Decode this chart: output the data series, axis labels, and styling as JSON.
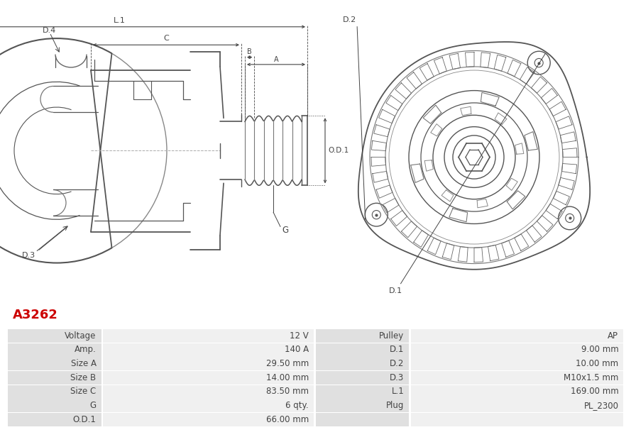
{
  "title": "A3262",
  "title_color": "#cc0000",
  "bg_color": "#ffffff",
  "table_row_bg_odd": "#e0e0e0",
  "table_row_bg_even": "#f0f0f0",
  "table_border_color": "#ffffff",
  "left_col_labels": [
    "Voltage",
    "Amp.",
    "Size A",
    "Size B",
    "Size C",
    "G",
    "O.D.1"
  ],
  "left_col_values": [
    "12 V",
    "140 A",
    "29.50 mm",
    "14.00 mm",
    "83.50 mm",
    "6 qty.",
    "66.00 mm"
  ],
  "right_col_labels": [
    "Pulley",
    "D.1",
    "D.2",
    "D.3",
    "L.1",
    "Plug",
    ""
  ],
  "right_col_values": [
    "AP",
    "9.00 mm",
    "10.00 mm",
    "M10x1.5 mm",
    "169.00 mm",
    "PL_2300",
    ""
  ],
  "font_size_title": 13,
  "font_size_table": 8.5,
  "line_color": "#555555",
  "dim_color": "#444444",
  "label_color": "#333333"
}
